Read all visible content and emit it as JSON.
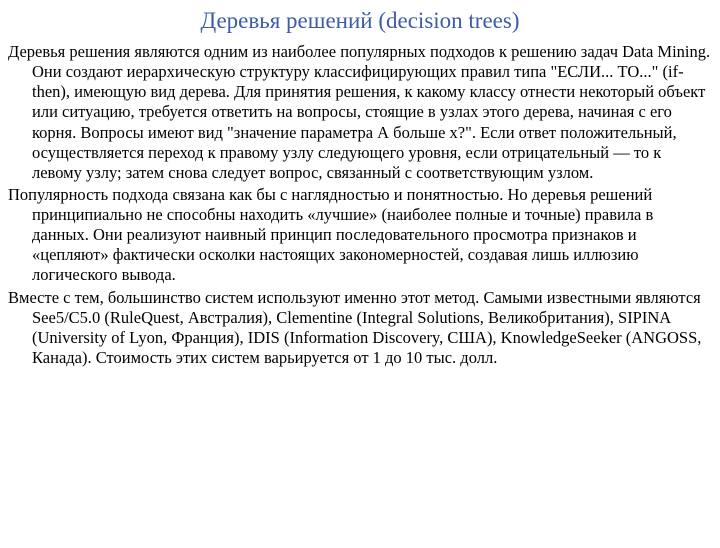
{
  "colors": {
    "title": "#3d5ba9",
    "body": "#000000",
    "background": "#ffffff"
  },
  "typography": {
    "title_fontsize_pt": 23,
    "body_fontsize_pt": 16.5,
    "font_family": "Times New Roman"
  },
  "title": "Деревья решений (decision trees)",
  "paragraphs": [
    "Деревья решения являются одним из наиболее популярных подходов к решению задач Data Mining. Они создают иерархическую структуру классифицирующих правил типа \"ЕСЛИ... ТО...\" (if-then), имеющую вид дерева. Для принятия решения, к какому классу отнести некоторый объект или ситуацию, требуется ответить на вопросы, стоящие в узлах этого дерева, начиная с его корня. Вопросы имеют вид \"значение параметра А больше х?\". Если ответ положительный, осуществляется переход к правому узлу следующего уровня, если отрицательный — то к левому узлу; затем снова следует вопрос, связанный с соответствующим узлом.",
    "Популярность подхода связана как бы с наглядностью и понятностью. Но деревья решений принципиально не способны находить «лучшие» (наиболее полные и точные) правила в данных. Они реализуют наивный принцип последовательного просмотра признаков и «цепляют» фактически осколки настоящих закономерностей, создавая лишь иллюзию логического вывода.",
    "Вместе с тем, большинство систем используют именно этот метод. Самыми известными являются See5/C5.0 (RuleQuest, Австралия), Clementine (Integral Solutions, Великобритания), SIPINA (University of Lyon, Франция), IDIS (Information Discovery, США), KnowledgeSeeker (ANGOSS, Канада). Стоимость этих систем варьируется от 1 до 10 тыс. долл."
  ]
}
